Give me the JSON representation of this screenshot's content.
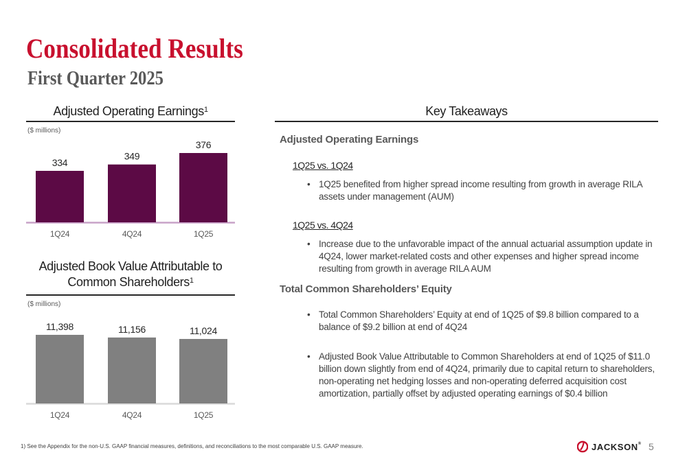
{
  "header": {
    "title": "Consolidated Results",
    "subtitle": "First Quarter 2025"
  },
  "aoe_panel": {
    "title": "Adjusted Operating Earnings",
    "title_sup": "1",
    "units": "($ millions)"
  },
  "abv_panel": {
    "title_line1": "Adjusted Book Value Attributable to",
    "title_line2": "Common Shareholders",
    "title_sup": "1",
    "units": "($ millions)"
  },
  "chart_data": [
    {
      "type": "bar",
      "categories": [
        "1Q24",
        "4Q24",
        "1Q25"
      ],
      "values": [
        334,
        349,
        376
      ],
      "value_labels": [
        "334",
        "349",
        "376"
      ],
      "title": "Adjusted Operating Earnings",
      "ylabel": "($ millions)",
      "ylim": [
        0,
        376
      ],
      "bar_color": "#5c0a45",
      "axis_color": "#c8a2c8"
    },
    {
      "type": "bar",
      "categories": [
        "1Q24",
        "4Q24",
        "1Q25"
      ],
      "values": [
        11398,
        11156,
        11024
      ],
      "value_labels": [
        "11,398",
        "11,156",
        "11,024"
      ],
      "title": "Adjusted Book Value Attributable to Common Shareholders",
      "ylabel": "($ millions)",
      "ylim": [
        0,
        11398
      ],
      "bar_color": "#808080",
      "axis_color": "#d9d9d9"
    }
  ],
  "takeaways": {
    "title": "Key Takeaways",
    "aoe_heading": "Adjusted Operating Earnings",
    "compare1": "1Q25 vs. 1Q24",
    "compare1_bullet": "1Q25 benefited from higher spread income resulting from growth in average RILA assets under management (AUM)",
    "compare2": "1Q25 vs. 4Q24",
    "compare2_bullet": "Increase due to the unfavorable impact of the annual actuarial assumption update in 4Q24, lower market-related costs and other expenses and higher spread income resulting from growth in average RILA AUM",
    "equity_heading": "Total Common Shareholders’ Equity",
    "equity_bullet1": "Total Common Shareholders’ Equity at end of 1Q25 of $9.8 billion compared to a balance of $9.2 billion at end of 4Q24",
    "equity_bullet2": "Adjusted Book Value Attributable to Common Shareholders at end of 1Q25 of $11.0 billion down slightly from end of 4Q24, primarily due to capital return to shareholders, non-operating net hedging losses and non-operating deferred acquisition cost amortization, partially offset by adjusted operating earnings of $0.4 billion"
  },
  "footer": {
    "footnote": "1) See the Appendix for the non-U.S. GAAP financial measures, definitions, and reconciliations to the most comparable U.S. GAAP measure.",
    "brand": "JACKSON",
    "brand_mark": "®",
    "page_number": "5"
  },
  "colors": {
    "title_red": "#c8102e",
    "logo_red": "#c8102e"
  }
}
